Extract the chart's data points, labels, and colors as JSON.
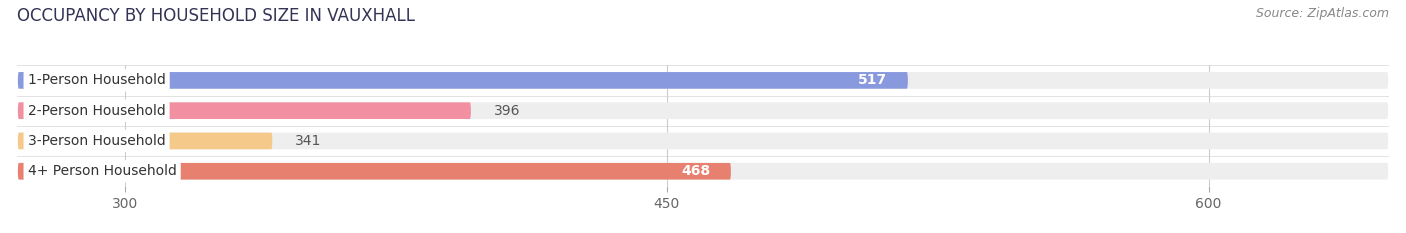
{
  "title": "OCCUPANCY BY HOUSEHOLD SIZE IN VAUXHALL",
  "source": "Source: ZipAtlas.com",
  "categories": [
    "1-Person Household",
    "2-Person Household",
    "3-Person Household",
    "4+ Person Household"
  ],
  "values": [
    517,
    396,
    341,
    468
  ],
  "bar_colors": [
    "#8899dd",
    "#f28fa0",
    "#f5c98a",
    "#e88070"
  ],
  "xlim_min": 270,
  "xlim_max": 650,
  "xticks": [
    300,
    450,
    600
  ],
  "background_color": "#ffffff",
  "bar_bg_color": "#eeeeee",
  "title_fontsize": 12,
  "label_fontsize": 10,
  "value_fontsize": 10,
  "source_fontsize": 9
}
